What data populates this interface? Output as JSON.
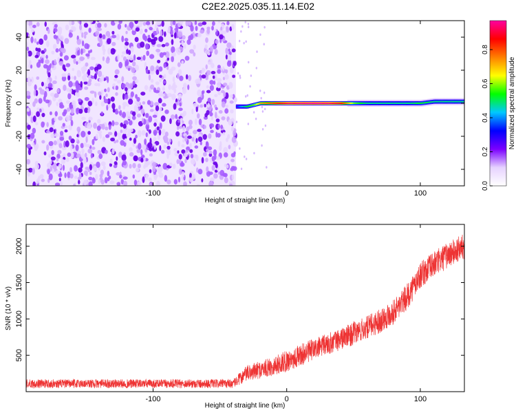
{
  "figure_title": "C2E2.2025.035.11.14.E02",
  "chart_data": [
    {
      "type": "heatmap",
      "xlabel": "Height of straight line (km)",
      "ylabel": "Frequency (Hz)",
      "xlim": [
        -195,
        133
      ],
      "ylim": [
        -50,
        50
      ],
      "x_ticks": [
        -100,
        0,
        100
      ],
      "x_tick_labels": [
        "-100",
        "0",
        "100"
      ],
      "y_ticks": [
        -40,
        -20,
        0,
        20,
        40
      ],
      "y_tick_labels": [
        "-40",
        "-20",
        "0",
        "20",
        "40"
      ],
      "noise_region_x": [
        -195,
        -38
      ],
      "signal_track": {
        "x": [
          -38,
          -30,
          -25,
          -20,
          -15,
          -10,
          -5,
          0,
          10,
          20,
          30,
          40,
          50,
          60,
          70,
          80,
          90,
          100,
          110,
          120,
          133
        ],
        "y": [
          -2,
          -2,
          -1,
          0,
          0,
          0,
          0,
          0,
          0,
          0,
          0,
          0,
          0,
          0,
          0,
          0,
          0,
          0,
          1,
          1,
          1
        ],
        "amplitude": [
          0.35,
          0.55,
          0.6,
          0.75,
          0.8,
          0.85,
          0.9,
          0.95,
          0.98,
          1.0,
          0.97,
          0.9,
          0.6,
          0.5,
          0.5,
          0.5,
          0.5,
          0.55,
          0.5,
          0.5,
          0.5
        ]
      },
      "colorbar": {
        "label": "Normalized spectral amplitude",
        "range": [
          0,
          0.97
        ],
        "ticks": [
          0.0,
          0.2,
          0.4,
          0.6,
          0.8
        ],
        "tick_labels": [
          "0.0",
          "0.2",
          "0.4",
          "0.6",
          "0.8"
        ],
        "colormap": [
          "#ffffff",
          "#e6d2ff",
          "#7b00ff",
          "#0000ff",
          "#00c8ff",
          "#00ff00",
          "#ffff00",
          "#ff8000",
          "#ff0000",
          "#ff00a0"
        ]
      }
    },
    {
      "type": "line",
      "xlabel": "Height of straight line (km)",
      "ylabel": "SNR (10 * v/v)",
      "xlim": [
        -195,
        133
      ],
      "ylim": [
        0,
        2300
      ],
      "x_ticks": [
        -100,
        0,
        100
      ],
      "x_tick_labels": [
        "-100",
        "0",
        "100"
      ],
      "y_ticks": [
        500,
        1000,
        1500,
        2000
      ],
      "y_tick_labels": [
        "500",
        "1000",
        "1500",
        "2000"
      ],
      "series": [
        {
          "color": "#ee3333",
          "x": [
            -195,
            -150,
            -100,
            -60,
            -40,
            -30,
            -20,
            -10,
            0,
            10,
            20,
            30,
            40,
            50,
            60,
            70,
            80,
            90,
            95,
            100,
            110,
            120,
            133
          ],
          "y": [
            110,
            110,
            110,
            110,
            110,
            250,
            300,
            350,
            420,
            500,
            580,
            650,
            720,
            800,
            880,
            980,
            1100,
            1300,
            1450,
            1600,
            1750,
            1870,
            2000
          ],
          "noise_amplitude": [
            60,
            60,
            60,
            60,
            60,
            110,
            120,
            130,
            150,
            150,
            150,
            150,
            150,
            160,
            160,
            170,
            170,
            180,
            180,
            180,
            180,
            180,
            180
          ]
        }
      ]
    }
  ]
}
